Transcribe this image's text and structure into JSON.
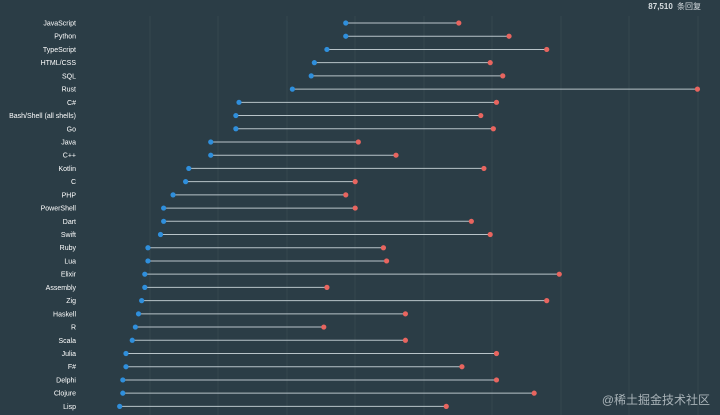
{
  "header": {
    "response_count": "87,510",
    "response_unit": "条回复"
  },
  "watermark": "@稀土掘金技术社区",
  "colors": {
    "background": "#2b3d46",
    "start_dot": "#2f8fdc",
    "end_dot": "#e8655f",
    "connector": "#b8c4c9",
    "grid": "#34474f",
    "label": "#ffffff"
  },
  "chart_data": {
    "type": "dumbbell",
    "title": "",
    "xlabel": "",
    "ylabel": "",
    "xlim": [
      0,
      100
    ],
    "grid": true,
    "legend": "none",
    "categories": [
      "JavaScript",
      "Python",
      "TypeScript",
      "HTML/CSS",
      "SQL",
      "Rust",
      "C#",
      "Bash/Shell (all shells)",
      "Go",
      "Java",
      "C++",
      "Kotlin",
      "C",
      "PHP",
      "PowerShell",
      "Dart",
      "Swift",
      "Ruby",
      "Lua",
      "Elixir",
      "Assembly",
      "Zig",
      "Haskell",
      "R",
      "Scala",
      "Julia",
      "F#",
      "Delphi",
      "Clojure",
      "Lisp"
    ],
    "series": [
      {
        "values": [
          42,
          42,
          39,
          37,
          36.5,
          33.5,
          25,
          24.5,
          24.5,
          20.5,
          20.5,
          17,
          16.5,
          14.5,
          13,
          13,
          12.5,
          10.5,
          10.5,
          10,
          10,
          9.5,
          9,
          8.5,
          8,
          7,
          7,
          6.5,
          6.5,
          6
        ]
      },
      {
        "values": [
          60,
          68,
          74,
          65,
          67,
          98,
          66,
          63.5,
          65.5,
          44,
          50,
          64,
          43.5,
          42,
          43.5,
          62,
          65,
          48,
          48.5,
          76,
          39,
          74,
          51.5,
          38.5,
          51.5,
          66,
          60.5,
          66,
          72,
          58
        ]
      }
    ]
  }
}
